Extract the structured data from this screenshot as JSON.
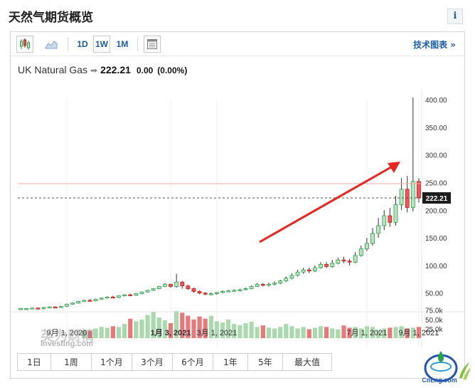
{
  "page": {
    "title": "天然气期货概览",
    "info_label": "i"
  },
  "toolbar": {
    "timeframes": [
      "1D",
      "1W",
      "1M"
    ],
    "active_timeframe": "1W",
    "tech_chart_label": "技术图表 »"
  },
  "quote": {
    "name": "UK Natural Gas",
    "arrow": "➡",
    "price": "222.21",
    "change": "0.00",
    "change_pct": "(0.00%)"
  },
  "colors": {
    "up": "#2aa14b",
    "up_fill": "#b9e3bf",
    "down": "#c91c1c",
    "down_fill": "#e8585a",
    "vol_up": "#a9d9ad",
    "vol_down": "#e8797b",
    "link": "#1a5ea8",
    "annotation_arrow": "#e8251f"
  },
  "chart_data": {
    "type": "candlestick",
    "y_ticks": [
      "400.00",
      "350.00",
      "300.00",
      "250.00",
      "200.00",
      "150.00",
      "100.00",
      "50.00"
    ],
    "y_tick_values": [
      400,
      350,
      300,
      250,
      200,
      150,
      100,
      50
    ],
    "volume_ticks": [
      "75.0k",
      "50.0k",
      "25.0k"
    ],
    "volume_tick_values": [
      75,
      50,
      25
    ],
    "x_labels": [
      "9月 1, 2020",
      "1月 3, 2021",
      "3月 1, 2021",
      "7月 1, 2021",
      "9月 1, 2021"
    ],
    "x_label_week_index": [
      8,
      26,
      34,
      60,
      69
    ],
    "last_price_label": "222.21",
    "last_price": 222.21,
    "candles": [
      [
        21,
        22,
        20,
        23
      ],
      [
        22,
        22,
        21,
        23
      ],
      [
        22,
        23,
        21,
        24
      ],
      [
        23,
        22,
        21,
        24
      ],
      [
        22,
        24,
        21,
        25
      ],
      [
        24,
        25,
        23,
        26
      ],
      [
        25,
        24,
        23,
        26
      ],
      [
        24,
        26,
        23,
        27
      ],
      [
        26,
        30,
        25,
        31
      ],
      [
        30,
        32,
        29,
        33
      ],
      [
        32,
        35,
        31,
        36
      ],
      [
        35,
        37,
        34,
        38
      ],
      [
        37,
        36,
        35,
        39
      ],
      [
        36,
        39,
        35,
        40
      ],
      [
        39,
        41,
        38,
        42
      ],
      [
        41,
        43,
        40,
        44
      ],
      [
        43,
        42,
        41,
        45
      ],
      [
        42,
        45,
        41,
        46
      ],
      [
        45,
        47,
        44,
        48
      ],
      [
        47,
        46,
        45,
        49
      ],
      [
        46,
        49,
        45,
        50
      ],
      [
        49,
        52,
        48,
        53
      ],
      [
        52,
        55,
        51,
        56
      ],
      [
        55,
        58,
        54,
        59
      ],
      [
        58,
        62,
        57,
        63
      ],
      [
        62,
        66,
        61,
        68
      ],
      [
        66,
        62,
        60,
        67
      ],
      [
        62,
        70,
        60,
        85
      ],
      [
        70,
        63,
        58,
        72
      ],
      [
        63,
        58,
        56,
        65
      ],
      [
        58,
        53,
        51,
        60
      ],
      [
        53,
        50,
        48,
        55
      ],
      [
        50,
        48,
        46,
        52
      ],
      [
        48,
        49,
        46,
        51
      ],
      [
        49,
        51,
        47,
        52
      ],
      [
        51,
        53,
        50,
        55
      ],
      [
        53,
        54,
        52,
        56
      ],
      [
        54,
        55,
        53,
        57
      ],
      [
        55,
        56,
        53,
        58
      ],
      [
        56,
        58,
        55,
        60
      ],
      [
        58,
        62,
        57,
        64
      ],
      [
        62,
        66,
        61,
        68
      ],
      [
        66,
        64,
        62,
        68
      ],
      [
        64,
        66,
        62,
        69
      ],
      [
        66,
        68,
        64,
        71
      ],
      [
        68,
        72,
        66,
        74
      ],
      [
        72,
        77,
        70,
        80
      ],
      [
        77,
        82,
        75,
        86
      ],
      [
        82,
        88,
        80,
        92
      ],
      [
        88,
        92,
        85,
        96
      ],
      [
        92,
        90,
        86,
        96
      ],
      [
        90,
        96,
        88,
        100
      ],
      [
        96,
        102,
        94,
        106
      ],
      [
        102,
        98,
        95,
        106
      ],
      [
        98,
        104,
        96,
        110
      ],
      [
        104,
        110,
        102,
        114
      ],
      [
        110,
        108,
        104,
        116
      ],
      [
        108,
        106,
        100,
        112
      ],
      [
        106,
        118,
        104,
        124
      ],
      [
        118,
        130,
        116,
        136
      ],
      [
        130,
        140,
        126,
        150
      ],
      [
        140,
        158,
        136,
        168
      ],
      [
        158,
        172,
        150,
        186
      ],
      [
        172,
        190,
        164,
        200
      ],
      [
        190,
        178,
        170,
        204
      ],
      [
        178,
        210,
        172,
        226
      ],
      [
        210,
        238,
        200,
        258
      ],
      [
        238,
        205,
        196,
        262
      ],
      [
        205,
        252,
        198,
        404
      ],
      [
        252,
        222.21,
        214,
        258
      ]
    ],
    "volume_colors": "up/down from candle open vs close",
    "volumes": [
      0,
      0,
      0,
      0,
      0,
      0,
      0,
      0,
      0,
      0,
      0,
      22,
      20,
      26,
      30,
      28,
      32,
      30,
      38,
      52,
      45,
      50,
      62,
      70,
      55,
      48,
      40,
      72,
      68,
      60,
      50,
      58,
      52,
      60,
      45,
      42,
      50,
      38,
      35,
      40,
      44,
      30,
      34,
      28,
      26,
      30,
      38,
      32,
      26,
      30,
      24,
      28,
      32,
      30,
      26,
      24,
      34,
      28,
      30,
      26,
      32,
      30,
      22,
      26,
      28,
      30,
      32,
      26,
      28,
      30
    ]
  },
  "periods": [
    {
      "label": "1日"
    },
    {
      "label": "1周"
    },
    {
      "label": "1个月"
    },
    {
      "label": "3个月"
    },
    {
      "label": "6个月"
    },
    {
      "label": "1年"
    },
    {
      "label": "5年"
    },
    {
      "label": "最大值"
    }
  ],
  "watermark": {
    "cn": "英为财情",
    "en": "Investing.com"
  },
  "logo": {
    "text": "CnLng.com"
  }
}
